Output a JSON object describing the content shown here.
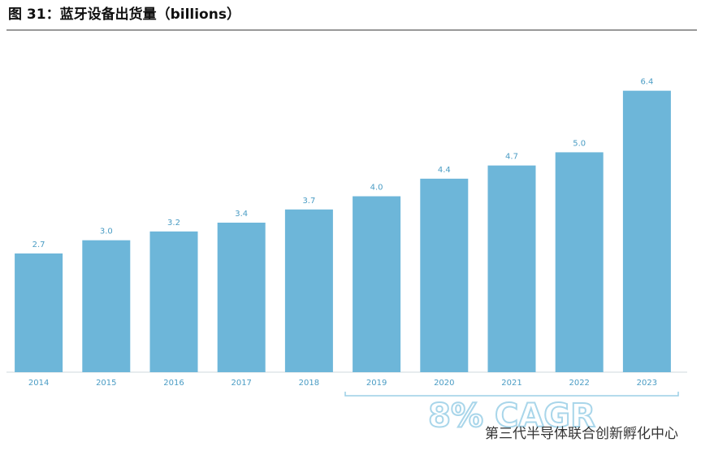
{
  "chart_data": {
    "type": "bar",
    "title": "图 31：蓝牙设备出货量（billions）",
    "categories": [
      "2014",
      "2015",
      "2016",
      "2017",
      "2018",
      "2019",
      "2020",
      "2021",
      "2022",
      "2023"
    ],
    "values": [
      2.7,
      3.0,
      3.2,
      3.4,
      3.7,
      4.0,
      4.4,
      4.7,
      5.0,
      6.4
    ],
    "value_labels": [
      "2.7",
      "3.0",
      "3.2",
      "3.4",
      "3.7",
      "4.0",
      "4.4",
      "4.7",
      "5.0",
      "6.4"
    ],
    "color": "#6db6d9",
    "ylim": [
      0,
      6.8
    ],
    "annotation": "8% CAGR",
    "watermark": "第三代半导体联合创新孵化中心"
  }
}
